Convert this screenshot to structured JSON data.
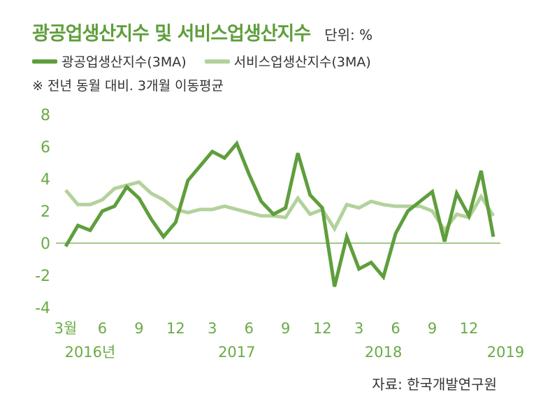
{
  "header": {
    "title": "광공업생산지수 및 서비스업생산지수",
    "unit": "단위: %"
  },
  "note": "※ 전년 동월 대비. 3개월 이동평균",
  "source": "자료: 한국개발연구원",
  "colors": {
    "industrial": "#5f9e3c",
    "service": "#b2d29c",
    "axis": "#6aaa45"
  },
  "chart_data": {
    "type": "line",
    "title": "광공업생산지수 및 서비스업생산지수",
    "ylim": [
      -4,
      8
    ],
    "yticks": [
      "8",
      "6",
      "4",
      "2",
      "0",
      "-2",
      "-4"
    ],
    "xticks": [
      {
        "index": 0,
        "label": "3월"
      },
      {
        "index": 3,
        "label": "6"
      },
      {
        "index": 6,
        "label": "9"
      },
      {
        "index": 9,
        "label": "12"
      },
      {
        "index": 12,
        "label": "3"
      },
      {
        "index": 15,
        "label": "6"
      },
      {
        "index": 18,
        "label": "9"
      },
      {
        "index": 21,
        "label": "12"
      },
      {
        "index": 24,
        "label": "3"
      },
      {
        "index": 27,
        "label": "6"
      },
      {
        "index": 30,
        "label": "9"
      },
      {
        "index": 33,
        "label": "12"
      }
    ],
    "years": [
      {
        "index": 2,
        "label": "2016년"
      },
      {
        "index": 14,
        "label": "2017"
      },
      {
        "index": 26,
        "label": "2018"
      },
      {
        "index": 36,
        "label": "2019"
      }
    ],
    "legend_position": "top-left",
    "series": [
      {
        "name": "광공업생산지수(3MA)",
        "values": [
          -0.2,
          1.1,
          0.8,
          2.0,
          2.3,
          3.5,
          2.8,
          1.5,
          0.4,
          1.3,
          3.9,
          4.8,
          5.7,
          5.3,
          6.2,
          4.3,
          2.6,
          1.8,
          2.2,
          5.6,
          3.0,
          2.2,
          -2.7,
          0.4,
          -1.6,
          -1.2,
          -2.1,
          0.6,
          2.0,
          2.6,
          3.2,
          0.1,
          3.1,
          1.7,
          4.5,
          0.4
        ]
      },
      {
        "name": "서비스업생산지수(3MA)",
        "values": [
          3.3,
          2.4,
          2.4,
          2.7,
          3.4,
          3.6,
          3.8,
          3.1,
          2.7,
          2.1,
          1.9,
          2.1,
          2.1,
          2.3,
          2.1,
          1.9,
          1.7,
          1.7,
          1.6,
          2.8,
          1.8,
          2.1,
          0.9,
          2.4,
          2.2,
          2.6,
          2.4,
          2.3,
          2.3,
          2.3,
          2.0,
          0.8,
          1.8,
          1.6,
          2.9,
          1.7
        ]
      }
    ]
  }
}
